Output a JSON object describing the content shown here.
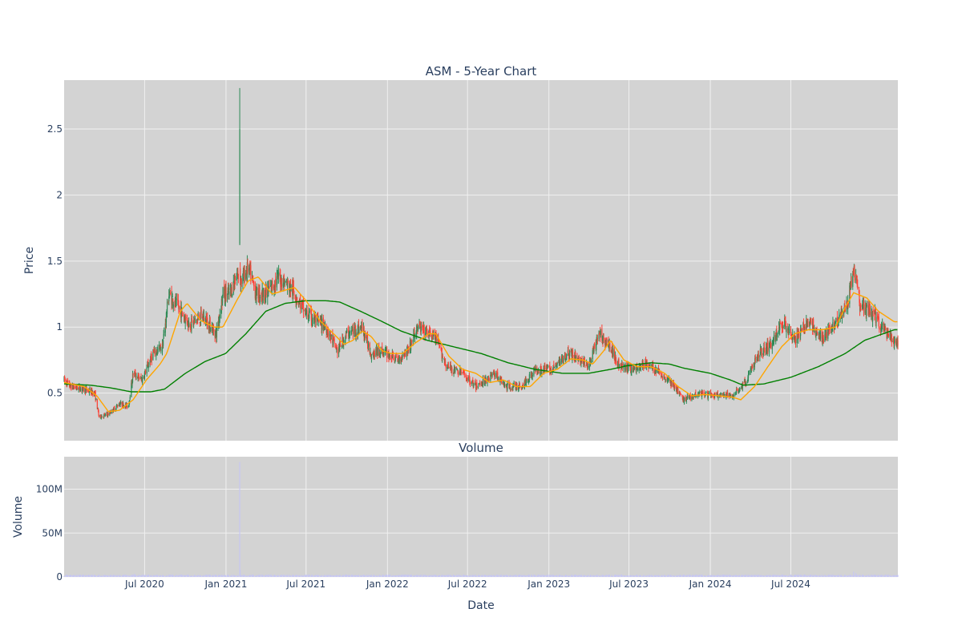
{
  "chart_data": {
    "type": "candlestick",
    "title": "ASM - 5-Year Chart",
    "grid": true,
    "legend": "none",
    "colors": {
      "plot_bg": "#d3d3d3",
      "grid": "#f0f0f0",
      "up": "#2e8b57",
      "down": "#ff4136",
      "ma_short": "#ffa500",
      "ma_long": "#008000",
      "volume": "#c6c6f2",
      "text": "#2a3f5f"
    },
    "price_panel": {
      "ylabel": "Price",
      "ylim": [
        0.14,
        2.87
      ],
      "yticks": [
        {
          "value": 0.5,
          "label": "0.5"
        },
        {
          "value": 1.0,
          "label": "1"
        },
        {
          "value": 1.5,
          "label": "1.5"
        },
        {
          "value": 2.0,
          "label": "2"
        },
        {
          "value": 2.5,
          "label": "2.5"
        }
      ],
      "close_keyframes": [
        [
          "2020-01-01",
          0.6
        ],
        [
          "2020-01-15",
          0.55
        ],
        [
          "2020-02-15",
          0.53
        ],
        [
          "2020-03-10",
          0.5
        ],
        [
          "2020-03-20",
          0.32
        ],
        [
          "2020-04-10",
          0.34
        ],
        [
          "2020-05-05",
          0.42
        ],
        [
          "2020-05-25",
          0.4
        ],
        [
          "2020-06-05",
          0.65
        ],
        [
          "2020-06-25",
          0.6
        ],
        [
          "2020-07-20",
          0.8
        ],
        [
          "2020-08-10",
          0.85
        ],
        [
          "2020-08-25",
          1.25
        ],
        [
          "2020-09-15",
          1.15
        ],
        [
          "2020-10-10",
          1.02
        ],
        [
          "2020-11-10",
          1.08
        ],
        [
          "2020-12-10",
          0.95
        ],
        [
          "2020-12-25",
          1.25
        ],
        [
          "2021-01-10",
          1.25
        ],
        [
          "2021-01-26",
          1.4
        ],
        [
          "2021-02-05",
          1.35
        ],
        [
          "2021-02-20",
          1.45
        ],
        [
          "2021-03-10",
          1.25
        ],
        [
          "2021-04-01",
          1.25
        ],
        [
          "2021-05-01",
          1.38
        ],
        [
          "2021-06-01",
          1.28
        ],
        [
          "2021-07-01",
          1.1
        ],
        [
          "2021-08-15",
          1.0
        ],
        [
          "2021-09-10",
          0.82
        ],
        [
          "2021-10-01",
          0.95
        ],
        [
          "2021-11-05",
          1.0
        ],
        [
          "2021-11-25",
          0.8
        ],
        [
          "2021-12-20",
          0.82
        ],
        [
          "2022-01-25",
          0.75
        ],
        [
          "2022-02-20",
          0.85
        ],
        [
          "2022-03-10",
          1.0
        ],
        [
          "2022-04-20",
          0.92
        ],
        [
          "2022-05-15",
          0.7
        ],
        [
          "2022-06-20",
          0.65
        ],
        [
          "2022-07-20",
          0.55
        ],
        [
          "2022-09-01",
          0.65
        ],
        [
          "2022-09-25",
          0.55
        ],
        [
          "2022-11-01",
          0.55
        ],
        [
          "2022-12-01",
          0.68
        ],
        [
          "2023-01-10",
          0.68
        ],
        [
          "2023-02-10",
          0.8
        ],
        [
          "2023-03-01",
          0.78
        ],
        [
          "2023-04-01",
          0.7
        ],
        [
          "2023-04-25",
          0.95
        ],
        [
          "2023-05-20",
          0.85
        ],
        [
          "2023-06-10",
          0.7
        ],
        [
          "2023-07-10",
          0.68
        ],
        [
          "2023-08-10",
          0.72
        ],
        [
          "2023-09-10",
          0.65
        ],
        [
          "2023-10-05",
          0.58
        ],
        [
          "2023-11-01",
          0.45
        ],
        [
          "2023-12-05",
          0.5
        ],
        [
          "2024-01-15",
          0.48
        ],
        [
          "2024-02-20",
          0.48
        ],
        [
          "2024-03-20",
          0.58
        ],
        [
          "2024-04-20",
          0.8
        ],
        [
          "2024-05-20",
          0.88
        ],
        [
          "2024-06-15",
          1.05
        ],
        [
          "2024-07-10",
          0.9
        ],
        [
          "2024-08-10",
          1.05
        ],
        [
          "2024-09-10",
          0.9
        ],
        [
          "2024-10-10",
          1.05
        ],
        [
          "2024-11-05",
          1.15
        ],
        [
          "2024-11-20",
          1.45
        ],
        [
          "2024-12-05",
          1.15
        ],
        [
          "2025-01-05",
          1.1
        ],
        [
          "2025-01-20",
          1.0
        ],
        [
          "2025-02-10",
          0.92
        ],
        [
          "2025-02-20",
          0.88
        ]
      ],
      "spike": {
        "date": "2021-02-01",
        "open": 1.63,
        "high": 2.81,
        "low": 1.62,
        "close": 2.5
      },
      "ma_short": [
        [
          "2020-01-01",
          0.58
        ],
        [
          "2020-02-15",
          0.55
        ],
        [
          "2020-03-15",
          0.48
        ],
        [
          "2020-04-10",
          0.36
        ],
        [
          "2020-05-05",
          0.37
        ],
        [
          "2020-06-05",
          0.45
        ],
        [
          "2020-07-05",
          0.6
        ],
        [
          "2020-08-05",
          0.72
        ],
        [
          "2020-08-20",
          0.8
        ],
        [
          "2020-09-20",
          1.12
        ],
        [
          "2020-10-05",
          1.18
        ],
        [
          "2020-11-05",
          1.05
        ],
        [
          "2020-12-05",
          1.0
        ],
        [
          "2020-12-25",
          1.0
        ],
        [
          "2021-01-25",
          1.2
        ],
        [
          "2021-02-20",
          1.35
        ],
        [
          "2021-03-15",
          1.38
        ],
        [
          "2021-04-15",
          1.25
        ],
        [
          "2021-05-15",
          1.28
        ],
        [
          "2021-06-05",
          1.3
        ],
        [
          "2021-07-01",
          1.2
        ],
        [
          "2021-08-01",
          1.05
        ],
        [
          "2021-09-01",
          0.95
        ],
        [
          "2021-09-25",
          0.87
        ],
        [
          "2021-10-15",
          0.9
        ],
        [
          "2021-11-05",
          0.97
        ],
        [
          "2021-11-25",
          0.93
        ],
        [
          "2021-12-20",
          0.82
        ],
        [
          "2022-01-10",
          0.8
        ],
        [
          "2022-02-05",
          0.8
        ],
        [
          "2022-03-05",
          0.88
        ],
        [
          "2022-04-05",
          0.95
        ],
        [
          "2022-04-20",
          0.95
        ],
        [
          "2022-05-20",
          0.78
        ],
        [
          "2022-06-20",
          0.68
        ],
        [
          "2022-07-20",
          0.65
        ],
        [
          "2022-08-20",
          0.58
        ],
        [
          "2022-09-20",
          0.6
        ],
        [
          "2022-10-20",
          0.55
        ],
        [
          "2022-11-20",
          0.55
        ],
        [
          "2022-12-20",
          0.65
        ],
        [
          "2023-01-20",
          0.68
        ],
        [
          "2023-02-20",
          0.76
        ],
        [
          "2023-03-20",
          0.75
        ],
        [
          "2023-04-10",
          0.72
        ],
        [
          "2023-05-05",
          0.82
        ],
        [
          "2023-05-20",
          0.9
        ],
        [
          "2023-06-20",
          0.75
        ],
        [
          "2023-07-20",
          0.7
        ],
        [
          "2023-08-20",
          0.7
        ],
        [
          "2023-09-20",
          0.65
        ],
        [
          "2023-10-20",
          0.55
        ],
        [
          "2023-11-20",
          0.48
        ],
        [
          "2023-12-20",
          0.49
        ],
        [
          "2024-01-20",
          0.48
        ],
        [
          "2024-02-20",
          0.47
        ],
        [
          "2024-03-10",
          0.45
        ],
        [
          "2024-04-10",
          0.55
        ],
        [
          "2024-05-10",
          0.7
        ],
        [
          "2024-06-10",
          0.85
        ],
        [
          "2024-07-10",
          0.95
        ],
        [
          "2024-08-10",
          0.98
        ],
        [
          "2024-09-10",
          0.98
        ],
        [
          "2024-10-10",
          1.0
        ],
        [
          "2024-11-01",
          1.15
        ],
        [
          "2024-11-20",
          1.26
        ],
        [
          "2024-12-20",
          1.22
        ],
        [
          "2025-01-15",
          1.12
        ],
        [
          "2025-02-20",
          1.04
        ]
      ],
      "ma_long": [
        [
          "2020-01-01",
          0.57
        ],
        [
          "2020-03-01",
          0.56
        ],
        [
          "2020-04-15",
          0.54
        ],
        [
          "2020-06-01",
          0.51
        ],
        [
          "2020-07-15",
          0.51
        ],
        [
          "2020-08-15",
          0.53
        ],
        [
          "2020-10-01",
          0.65
        ],
        [
          "2020-11-15",
          0.74
        ],
        [
          "2020-12-31",
          0.8
        ],
        [
          "2021-02-15",
          0.95
        ],
        [
          "2021-04-01",
          1.12
        ],
        [
          "2021-05-15",
          1.18
        ],
        [
          "2021-07-01",
          1.2
        ],
        [
          "2021-08-15",
          1.2
        ],
        [
          "2021-09-15",
          1.19
        ],
        [
          "2021-11-01",
          1.12
        ],
        [
          "2021-12-15",
          1.05
        ],
        [
          "2022-02-01",
          0.97
        ],
        [
          "2022-04-01",
          0.9
        ],
        [
          "2022-06-01",
          0.85
        ],
        [
          "2022-08-01",
          0.8
        ],
        [
          "2022-10-01",
          0.73
        ],
        [
          "2022-12-01",
          0.68
        ],
        [
          "2023-02-01",
          0.65
        ],
        [
          "2023-04-01",
          0.65
        ],
        [
          "2023-05-20",
          0.68
        ],
        [
          "2023-07-01",
          0.71
        ],
        [
          "2023-08-20",
          0.73
        ],
        [
          "2023-10-01",
          0.72
        ],
        [
          "2023-11-01",
          0.69
        ],
        [
          "2024-01-01",
          0.65
        ],
        [
          "2024-02-15",
          0.6
        ],
        [
          "2024-03-15",
          0.56
        ],
        [
          "2024-05-01",
          0.57
        ],
        [
          "2024-07-01",
          0.62
        ],
        [
          "2024-09-01",
          0.7
        ],
        [
          "2024-11-01",
          0.8
        ],
        [
          "2024-12-15",
          0.9
        ],
        [
          "2025-02-20",
          0.98
        ]
      ]
    },
    "volume_panel": {
      "subtitle": "Volume",
      "ylabel": "Volume",
      "ylim": [
        0,
        137000000
      ],
      "yticks": [
        {
          "value": 0,
          "label": "0"
        },
        {
          "value": 50000000,
          "label": "50M"
        },
        {
          "value": 100000000,
          "label": "100M"
        }
      ],
      "baseline_volume": 1800000,
      "spikes": [
        {
          "date": "2021-02-01",
          "value": 131000000
        },
        {
          "date": "2021-02-02",
          "value": 8000000
        },
        {
          "date": "2020-06-08",
          "value": 3500000
        },
        {
          "date": "2024-11-20",
          "value": 6000000
        },
        {
          "date": "2024-11-25",
          "value": 4500000
        }
      ]
    },
    "x_axis": {
      "label": "Date",
      "range": [
        "2020-01-01",
        "2025-02-28"
      ],
      "ticks": [
        {
          "date": "2020-07-01",
          "label": "Jul 2020"
        },
        {
          "date": "2021-01-01",
          "label": "Jan 2021"
        },
        {
          "date": "2021-07-01",
          "label": "Jul 2021"
        },
        {
          "date": "2022-01-01",
          "label": "Jan 2022"
        },
        {
          "date": "2022-07-01",
          "label": "Jul 2022"
        },
        {
          "date": "2023-01-01",
          "label": "Jan 2023"
        },
        {
          "date": "2023-07-01",
          "label": "Jul 2023"
        },
        {
          "date": "2024-01-01",
          "label": "Jan 2024"
        },
        {
          "date": "2024-07-01",
          "label": "Jul 2024"
        }
      ]
    }
  }
}
